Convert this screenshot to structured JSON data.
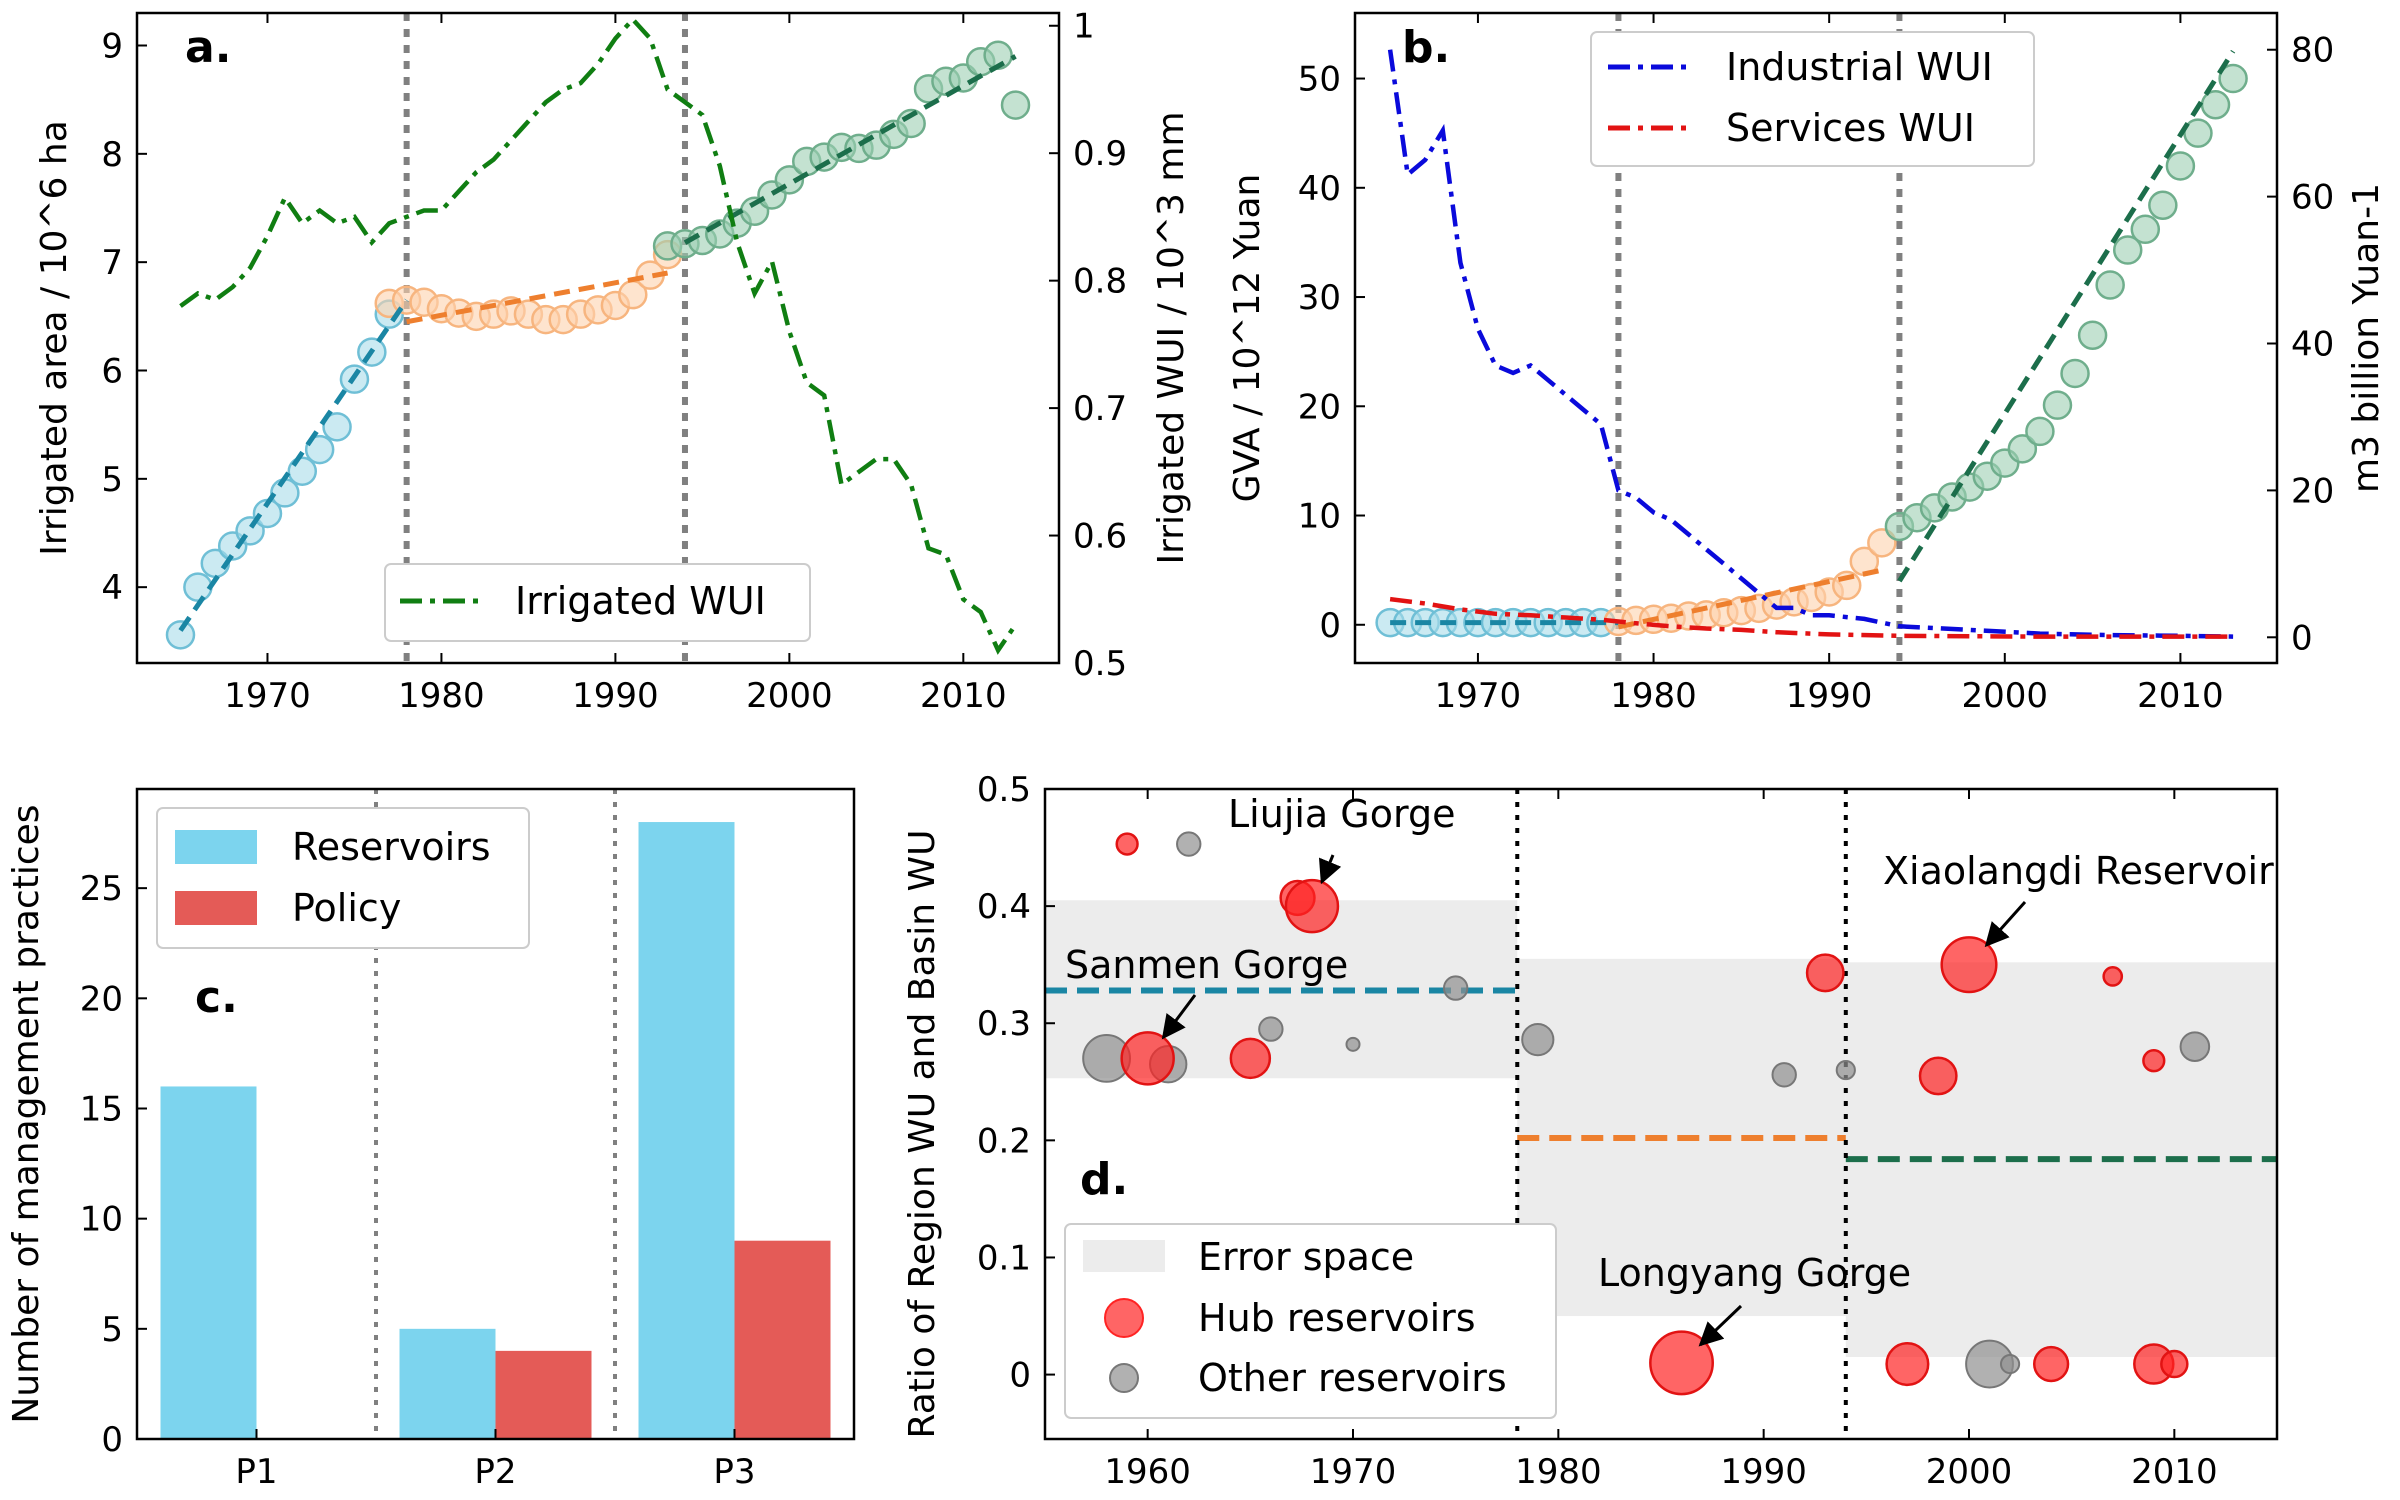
{
  "chart_data": [
    {
      "type": "scatter",
      "panel_label": "a.",
      "xlim": [
        1962.5,
        2015.5
      ],
      "ylim": [
        3.3,
        9.3
      ],
      "y2lim": [
        0.5,
        1.01
      ],
      "xticks": [
        1970,
        1980,
        1990,
        2000,
        2010
      ],
      "yticks": [
        4,
        5,
        6,
        7,
        8,
        9
      ],
      "y2ticks": [
        0.5,
        0.6,
        0.7,
        0.8,
        0.9,
        1.0
      ],
      "ylabel": "Irrigated area / 10^6 ha",
      "y2label": "Irrigated WUI / 10^3 mm",
      "vlines": [
        1978,
        1994
      ],
      "legend": {
        "entries": [
          "Irrigated WUI"
        ],
        "position": "lower-center"
      },
      "colors": {
        "p1": "#1a86a4",
        "p2": "#ee7f2e",
        "p3": "#1c6e4b",
        "wui": "#107e12",
        "vline": "#808080"
      },
      "area_points": [
        {
          "period": 1,
          "x": [
            1965,
            1966,
            1967,
            1968,
            1969,
            1970,
            1971,
            1972,
            1973,
            1974,
            1975,
            1976,
            1977
          ],
          "y": [
            3.56,
            4.0,
            4.22,
            4.38,
            4.52,
            4.68,
            4.87,
            5.07,
            5.27,
            5.48,
            5.92,
            6.17,
            6.52
          ]
        },
        {
          "period": 2,
          "x": [
            1977,
            1978,
            1979,
            1980,
            1981,
            1982,
            1983,
            1984,
            1985,
            1986,
            1987,
            1988,
            1989,
            1990,
            1991,
            1992,
            1993
          ],
          "y": [
            6.62,
            6.65,
            6.63,
            6.57,
            6.53,
            6.5,
            6.52,
            6.55,
            6.52,
            6.47,
            6.47,
            6.52,
            6.56,
            6.6,
            6.7,
            6.88,
            7.07
          ]
        },
        {
          "period": 3,
          "x": [
            1993,
            1994,
            1995,
            1996,
            1997,
            1998,
            1999,
            2000,
            2001,
            2002,
            2003,
            2004,
            2005,
            2006,
            2007,
            2008,
            2009,
            2010,
            2011,
            2012,
            2013
          ],
          "y": [
            7.15,
            7.17,
            7.2,
            7.26,
            7.36,
            7.47,
            7.62,
            7.76,
            7.93,
            7.97,
            8.06,
            8.05,
            8.08,
            8.18,
            8.28,
            8.6,
            8.67,
            8.7,
            8.85,
            8.91,
            8.45
          ]
        }
      ],
      "fit_lines": [
        {
          "period": 1,
          "x": [
            1965,
            1978
          ],
          "y": [
            3.6,
            6.65
          ]
        },
        {
          "period": 2,
          "x": [
            1978,
            1993
          ],
          "y": [
            6.45,
            6.9
          ]
        },
        {
          "period": 3,
          "x": [
            1994,
            2013
          ],
          "y": [
            7.18,
            8.9
          ]
        }
      ],
      "wui_series": {
        "name": "Irrigated WUI",
        "x": [
          1965,
          1966,
          1967,
          1968,
          1969,
          1970,
          1971,
          1972,
          1973,
          1974,
          1975,
          1976,
          1977,
          1978,
          1979,
          1980,
          1981,
          1982,
          1983,
          1984,
          1985,
          1986,
          1987,
          1988,
          1989,
          1990,
          1991,
          1992,
          1993,
          1994,
          1995,
          1996,
          1997,
          1998,
          1999,
          2000,
          2001,
          2002,
          2003,
          2004,
          2005,
          2006,
          2007,
          2008,
          2009,
          2010,
          2011,
          2012,
          2013
        ],
        "y": [
          0.78,
          0.79,
          0.785,
          0.795,
          0.81,
          0.835,
          0.865,
          0.845,
          0.855,
          0.845,
          0.85,
          0.83,
          0.845,
          0.85,
          0.855,
          0.855,
          0.87,
          0.885,
          0.895,
          0.91,
          0.925,
          0.94,
          0.95,
          0.955,
          0.97,
          0.99,
          1.005,
          0.99,
          0.95,
          0.94,
          0.93,
          0.89,
          0.83,
          0.79,
          0.815,
          0.76,
          0.72,
          0.71,
          0.64,
          0.65,
          0.66,
          0.66,
          0.64,
          0.59,
          0.585,
          0.55,
          0.54,
          0.51,
          0.53
        ]
      }
    },
    {
      "type": "scatter",
      "panel_label": "b.",
      "xlim": [
        1963,
        2015.5
      ],
      "ylim": [
        -3.5,
        56
      ],
      "y2lim": [
        -3.5,
        85
      ],
      "xticks": [
        1970,
        1980,
        1990,
        2000,
        2010
      ],
      "yticks": [
        0,
        10,
        20,
        30,
        40,
        50
      ],
      "y2ticks": [
        0,
        20,
        40,
        60,
        80
      ],
      "ylabel": "GVA / 10^12 Yuan",
      "y2label": "m3 billion Yuan-1",
      "vlines": [
        1978,
        1994
      ],
      "legend": {
        "entries": [
          "Industrial WUI",
          "Services WUI"
        ],
        "position": "upper-center"
      },
      "colors": {
        "p1": "#1a86a4",
        "p2": "#ee7f2e",
        "p3": "#1c6e4b",
        "industrial": "#0a0adb",
        "services": "#e21313",
        "vline": "#808080"
      },
      "gva_points": [
        {
          "period": 1,
          "x": [
            1965,
            1966,
            1967,
            1968,
            1969,
            1970,
            1971,
            1972,
            1973,
            1974,
            1975,
            1976,
            1977
          ],
          "y": [
            0.2,
            0.2,
            0.2,
            0.2,
            0.2,
            0.2,
            0.2,
            0.2,
            0.2,
            0.2,
            0.2,
            0.2,
            0.2
          ]
        },
        {
          "period": 2,
          "x": [
            1978,
            1979,
            1980,
            1981,
            1982,
            1983,
            1984,
            1985,
            1986,
            1987,
            1988,
            1989,
            1990,
            1991,
            1992,
            1993
          ],
          "y": [
            0.3,
            0.4,
            0.5,
            0.6,
            0.8,
            0.9,
            1.1,
            1.3,
            1.5,
            1.8,
            2.1,
            2.5,
            3.0,
            3.6,
            5.8,
            7.5
          ]
        },
        {
          "period": 3,
          "x": [
            1994,
            1995,
            1996,
            1997,
            1998,
            1999,
            2000,
            2001,
            2002,
            2003,
            2004,
            2005,
            2006,
            2007,
            2008,
            2009,
            2010,
            2011,
            2012,
            2013
          ],
          "y": [
            9.0,
            9.8,
            10.7,
            11.7,
            12.6,
            13.6,
            14.8,
            16.1,
            17.7,
            20.1,
            23.0,
            26.5,
            31.1,
            34.3,
            36.2,
            38.4,
            42.0,
            45.0,
            47.6,
            50.0
          ]
        }
      ],
      "fit_lines": [
        {
          "period": 1,
          "x": [
            1965,
            1978
          ],
          "y": [
            0.2,
            0.2
          ]
        },
        {
          "period": 2,
          "x": [
            1978,
            1993
          ],
          "y": [
            -0.2,
            5.0
          ]
        },
        {
          "period": 3,
          "x": [
            1994,
            2013
          ],
          "y": [
            4.0,
            52.5
          ]
        }
      ],
      "industrial_wui": {
        "name": "Industrial WUI",
        "x": [
          1965,
          1966,
          1967,
          1968,
          1969,
          1970,
          1971,
          1972,
          1973,
          1974,
          1975,
          1976,
          1977,
          1978,
          1979,
          1980,
          1981,
          1982,
          1983,
          1984,
          1985,
          1986,
          1987,
          1988,
          1989,
          1990,
          1992,
          1994,
          1998,
          2002,
          2006,
          2010,
          2013
        ],
        "y": [
          80,
          63,
          65,
          69,
          51,
          42,
          37,
          36,
          37,
          35,
          33,
          31,
          29,
          20,
          19,
          17,
          16,
          14,
          12,
          10,
          8,
          6,
          4,
          4,
          3,
          3,
          2.5,
          1.5,
          1,
          0.5,
          0.3,
          0.2,
          0.1
        ],
        "axis": "right"
      },
      "services_wui": {
        "name": "Services WUI",
        "x": [
          1965,
          1967,
          1969,
          1971,
          1973,
          1975,
          1977,
          1979,
          1981,
          1983,
          1985,
          1987,
          1990,
          1994,
          1998,
          2002,
          2006,
          2010,
          2013
        ],
        "y": [
          5.2,
          4.6,
          3.8,
          3.2,
          3.0,
          2.7,
          2.4,
          1.9,
          1.5,
          1.2,
          1.0,
          0.7,
          0.4,
          0.2,
          0.15,
          0.1,
          0.1,
          0.1,
          0.1
        ],
        "axis": "right"
      }
    },
    {
      "type": "bar",
      "panel_label": "c.",
      "categories": [
        "P1",
        "P2",
        "P3"
      ],
      "series": [
        {
          "name": "Reservoirs",
          "values": [
            16,
            5,
            28
          ],
          "color": "#7cd4ee"
        },
        {
          "name": "Policy",
          "values": [
            0,
            4,
            9
          ],
          "color": "#e45b57"
        }
      ],
      "ylabel": "Number of management practices",
      "ylim": [
        0,
        29.5
      ],
      "yticks": [
        0,
        5,
        10,
        15,
        20,
        25
      ],
      "legend": {
        "position": "upper-left"
      }
    },
    {
      "type": "scatter",
      "panel_label": "d.",
      "xlim": [
        1955,
        2015
      ],
      "ylim": [
        -0.055,
        0.5
      ],
      "xticks": [
        1960,
        1970,
        1980,
        1990,
        2000,
        2010
      ],
      "yticks": [
        0.0,
        0.1,
        0.2,
        0.3,
        0.4,
        0.5
      ],
      "ylabel": "Ratio of Region WU and Basin WU",
      "vlines": [
        1978,
        1994
      ],
      "legend": {
        "entries": [
          "Error space",
          "Hub reservoirs",
          "Other reservoirs"
        ],
        "position": "lower-left"
      },
      "colors": {
        "hub": "#ff2424",
        "other": "#909090",
        "error": "#ececec",
        "p1": "#1a86a4",
        "p2": "#ee7f2e",
        "p3": "#1c6e4b"
      },
      "error_bands": [
        {
          "x": [
            1955,
            1978
          ],
          "y": [
            0.253,
            0.405
          ]
        },
        {
          "x": [
            1978,
            1994
          ],
          "y": [
            0.05,
            0.355
          ]
        },
        {
          "x": [
            1994,
            2015
          ],
          "y": [
            0.015,
            0.352
          ]
        }
      ],
      "mean_lines": [
        {
          "x": [
            1955,
            1978
          ],
          "y": 0.328
        },
        {
          "x": [
            1978,
            1994
          ],
          "y": 0.202
        },
        {
          "x": [
            1994,
            2015
          ],
          "y": 0.184
        }
      ],
      "hub_reservoirs": [
        {
          "x": 1959,
          "y": 0.453,
          "s": 0.8
        },
        {
          "x": 1960,
          "y": 0.27,
          "s": 2.0
        },
        {
          "x": 1965,
          "y": 0.27,
          "s": 1.5
        },
        {
          "x": 1967.3,
          "y": 0.407,
          "s": 1.3
        },
        {
          "x": 1968,
          "y": 0.4,
          "s": 2.0
        },
        {
          "x": 1986,
          "y": 0.01,
          "s": 2.4
        },
        {
          "x": 1993,
          "y": 0.343,
          "s": 1.4
        },
        {
          "x": 1997,
          "y": 0.009,
          "s": 1.6
        },
        {
          "x": 1998.5,
          "y": 0.255,
          "s": 1.4
        },
        {
          "x": 2000,
          "y": 0.35,
          "s": 2.1
        },
        {
          "x": 2004,
          "y": 0.009,
          "s": 1.3
        },
        {
          "x": 2007,
          "y": 0.34,
          "s": 0.7
        },
        {
          "x": 2009,
          "y": 0.268,
          "s": 0.8
        },
        {
          "x": 2009,
          "y": 0.009,
          "s": 1.5
        },
        {
          "x": 2010,
          "y": 0.009,
          "s": 1.0
        }
      ],
      "other_reservoirs": [
        {
          "x": 1958,
          "y": 0.27,
          "s": 1.8
        },
        {
          "x": 1961,
          "y": 0.265,
          "s": 1.4
        },
        {
          "x": 1962,
          "y": 0.453,
          "s": 0.9
        },
        {
          "x": 1966,
          "y": 0.295,
          "s": 0.9
        },
        {
          "x": 1970,
          "y": 0.282,
          "s": 0.5
        },
        {
          "x": 1975,
          "y": 0.33,
          "s": 0.9
        },
        {
          "x": 1979,
          "y": 0.286,
          "s": 1.2
        },
        {
          "x": 1991,
          "y": 0.256,
          "s": 0.9
        },
        {
          "x": 1994,
          "y": 0.26,
          "s": 0.7
        },
        {
          "x": 2001,
          "y": 0.009,
          "s": 1.8
        },
        {
          "x": 2002,
          "y": 0.009,
          "s": 0.7
        },
        {
          "x": 2011,
          "y": 0.28,
          "s": 1.1
        }
      ],
      "annotations": [
        {
          "text": "Liujia Gorge",
          "target": [
            1968,
            0.4
          ]
        },
        {
          "text": "Sanmen Gorge",
          "target": [
            1960,
            0.27
          ]
        },
        {
          "text": "Xiaolangdi Reservoir",
          "target": [
            2000,
            0.35
          ]
        },
        {
          "text": "Longyang Gorge",
          "target": [
            1986,
            0.01
          ]
        }
      ]
    }
  ]
}
